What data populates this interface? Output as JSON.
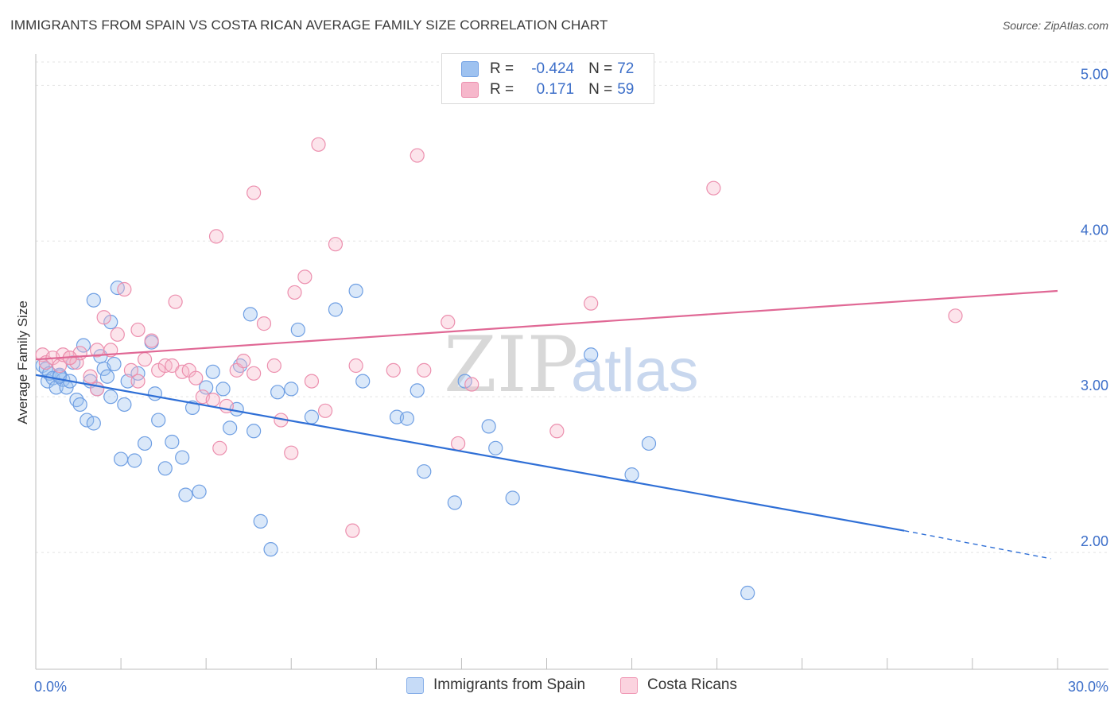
{
  "title": "IMMIGRANTS FROM SPAIN VS COSTA RICAN AVERAGE FAMILY SIZE CORRELATION CHART",
  "source": "Source: ZipAtlas.com",
  "watermark": {
    "zip": "ZIP",
    "atlas": "atlas"
  },
  "legend": {
    "r_label": "R =",
    "n_label": "N =",
    "rows": [
      {
        "r": "-0.424",
        "n": "72",
        "color": "#9ec2f0",
        "border": "#6f9fe3"
      },
      {
        "r": "0.171",
        "n": "59",
        "color": "#f6b7cb",
        "border": "#ec8fae"
      }
    ]
  },
  "bottom_legend": [
    {
      "label": "Immigrants from Spain",
      "color": "#c6dbf7",
      "border": "#86aee8"
    },
    {
      "label": "Costa Ricans",
      "color": "#fbd3df",
      "border": "#f09ab6"
    }
  ],
  "chart_data": {
    "type": "scatter",
    "xlabel": "",
    "ylabel": "Average Family Size",
    "xlim": [
      0,
      30
    ],
    "ylim": [
      1.25,
      5.15
    ],
    "x_tick_labels": {
      "min": "0.0%",
      "max": "30.0%"
    },
    "y_ticks": [
      {
        "v": 2,
        "label": "2.00"
      },
      {
        "v": 3,
        "label": "3.00"
      },
      {
        "v": 4,
        "label": "4.00"
      },
      {
        "v": 5,
        "label": "5.00"
      }
    ],
    "series": [
      {
        "name": "Immigrants from Spain",
        "color": "#6f9fe3",
        "fill": "rgba(158,194,240,0.38)",
        "trend": {
          "x0": 0,
          "y0": 3.14,
          "x1": 25.5,
          "y1": 2.14,
          "dash_to_x": 29.8,
          "dash_to_y": 1.96,
          "color": "#2f6fd6"
        },
        "points": [
          [
            0.2,
            3.2
          ],
          [
            0.3,
            3.18
          ],
          [
            0.35,
            3.1
          ],
          [
            0.4,
            3.15
          ],
          [
            0.5,
            3.12
          ],
          [
            0.6,
            3.06
          ],
          [
            0.7,
            3.14
          ],
          [
            0.8,
            3.11
          ],
          [
            0.9,
            3.06
          ],
          [
            0.7,
            3.13
          ],
          [
            1.0,
            3.1
          ],
          [
            1.1,
            3.22
          ],
          [
            1.2,
            2.98
          ],
          [
            1.3,
            2.95
          ],
          [
            1.4,
            3.33
          ],
          [
            1.5,
            2.85
          ],
          [
            1.6,
            3.1
          ],
          [
            1.7,
            2.83
          ],
          [
            1.8,
            3.05
          ],
          [
            1.9,
            3.26
          ],
          [
            2.0,
            3.18
          ],
          [
            2.1,
            3.13
          ],
          [
            2.2,
            3.0
          ],
          [
            2.3,
            3.21
          ],
          [
            2.4,
            3.7
          ],
          [
            2.6,
            2.95
          ],
          [
            2.7,
            3.1
          ],
          [
            2.5,
            2.6
          ],
          [
            2.9,
            2.59
          ],
          [
            3.0,
            3.15
          ],
          [
            3.2,
            2.7
          ],
          [
            3.4,
            3.35
          ],
          [
            3.5,
            3.02
          ],
          [
            3.6,
            2.85
          ],
          [
            3.8,
            2.54
          ],
          [
            4.0,
            2.71
          ],
          [
            4.3,
            2.61
          ],
          [
            4.4,
            2.37
          ],
          [
            4.6,
            2.93
          ],
          [
            4.8,
            2.39
          ],
          [
            5.0,
            3.06
          ],
          [
            5.2,
            3.16
          ],
          [
            5.5,
            3.05
          ],
          [
            5.7,
            2.8
          ],
          [
            5.9,
            2.92
          ],
          [
            6.0,
            3.2
          ],
          [
            6.4,
            2.78
          ],
          [
            6.6,
            2.2
          ],
          [
            6.9,
            2.02
          ],
          [
            6.3,
            3.53
          ],
          [
            7.1,
            3.03
          ],
          [
            7.5,
            3.05
          ],
          [
            7.7,
            3.43
          ],
          [
            8.1,
            2.87
          ],
          [
            8.8,
            3.56
          ],
          [
            9.4,
            3.68
          ],
          [
            9.6,
            3.1
          ],
          [
            10.6,
            2.87
          ],
          [
            10.9,
            2.86
          ],
          [
            11.2,
            3.04
          ],
          [
            11.4,
            2.52
          ],
          [
            12.3,
            2.32
          ],
          [
            12.6,
            3.1
          ],
          [
            13.3,
            2.81
          ],
          [
            13.5,
            2.67
          ],
          [
            14.0,
            2.35
          ],
          [
            16.3,
            3.27
          ],
          [
            17.5,
            2.5
          ],
          [
            18.0,
            2.7
          ],
          [
            20.9,
            1.74
          ],
          [
            1.7,
            3.62
          ],
          [
            2.2,
            3.48
          ]
        ]
      },
      {
        "name": "Costa Ricans",
        "color": "#ec8fae",
        "fill": "rgba(246,183,203,0.38)",
        "trend": {
          "x0": 0,
          "y0": 3.24,
          "x1": 30,
          "y1": 3.68,
          "color": "#e06895"
        },
        "points": [
          [
            0.2,
            3.27
          ],
          [
            0.3,
            3.22
          ],
          [
            0.5,
            3.25
          ],
          [
            0.7,
            3.2
          ],
          [
            0.8,
            3.27
          ],
          [
            1.0,
            3.25
          ],
          [
            1.2,
            3.22
          ],
          [
            1.3,
            3.28
          ],
          [
            1.6,
            3.13
          ],
          [
            1.8,
            3.05
          ],
          [
            2.0,
            3.51
          ],
          [
            2.2,
            3.3
          ],
          [
            2.4,
            3.4
          ],
          [
            2.6,
            3.69
          ],
          [
            2.8,
            3.17
          ],
          [
            3.0,
            3.1
          ],
          [
            3.2,
            3.24
          ],
          [
            3.4,
            3.36
          ],
          [
            3.6,
            3.17
          ],
          [
            3.8,
            3.2
          ],
          [
            4.0,
            3.2
          ],
          [
            4.1,
            3.61
          ],
          [
            4.3,
            3.16
          ],
          [
            4.5,
            3.17
          ],
          [
            4.7,
            3.12
          ],
          [
            4.9,
            3.0
          ],
          [
            5.2,
            2.98
          ],
          [
            5.4,
            2.67
          ],
          [
            5.6,
            2.94
          ],
          [
            5.9,
            3.17
          ],
          [
            6.1,
            3.23
          ],
          [
            6.4,
            3.15
          ],
          [
            6.7,
            3.47
          ],
          [
            7.0,
            3.2
          ],
          [
            7.2,
            2.85
          ],
          [
            7.5,
            2.64
          ],
          [
            7.9,
            3.77
          ],
          [
            8.1,
            3.1
          ],
          [
            8.5,
            2.91
          ],
          [
            8.3,
            4.62
          ],
          [
            8.8,
            3.98
          ],
          [
            9.3,
            2.14
          ],
          [
            9.4,
            3.2
          ],
          [
            10.5,
            3.17
          ],
          [
            11.2,
            4.55
          ],
          [
            11.4,
            3.17
          ],
          [
            12.1,
            3.48
          ],
          [
            12.4,
            2.7
          ],
          [
            12.8,
            3.08
          ],
          [
            15.3,
            2.78
          ],
          [
            16.3,
            3.6
          ],
          [
            19.9,
            4.34
          ],
          [
            27.0,
            3.52
          ],
          [
            5.3,
            4.03
          ],
          [
            6.4,
            4.31
          ],
          [
            7.6,
            3.67
          ],
          [
            3.0,
            3.43
          ],
          [
            1.0,
            3.25
          ],
          [
            1.8,
            3.3
          ]
        ]
      }
    ]
  }
}
